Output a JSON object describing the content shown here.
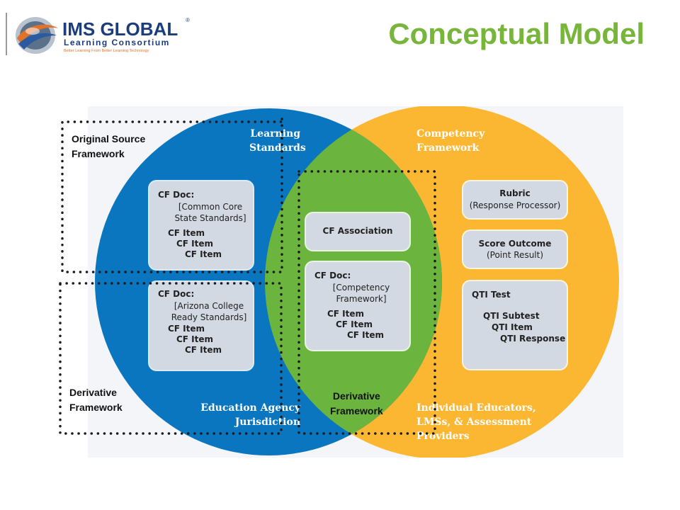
{
  "header": {
    "logo_main": "IMS GLOBAL",
    "logo_sub": "Learning Consortium",
    "logo_tagline": "Better Learning From Better Learning Technology",
    "registered_mark": "®",
    "title": "Conceptual Model"
  },
  "colors": {
    "title": "#77b53b",
    "blue_circle": "#0b76c0",
    "orange_circle": "#fbb731",
    "overlap": "#6bb43e",
    "box": "#d2d9e3"
  },
  "circles": {
    "left_label": "Learning\nStandards",
    "right_label": "Competency\nFramework",
    "left_bottom_label": "Education Agency\nJurisdiction",
    "right_bottom_label": "Individual Educators,\nLMSs, & Assessment\nProviders"
  },
  "left_boxes": [
    {
      "title": "CF Doc:",
      "subtitle": "[Common Core\nState Standards]",
      "items": [
        "CF Item",
        "CF Item",
        "CF Item"
      ]
    },
    {
      "title": "CF Doc:",
      "subtitle": "[Arizona College\nReady Standards]",
      "items": [
        "CF Item",
        "CF Item",
        "CF Item"
      ]
    }
  ],
  "center_boxes": {
    "association": "CF Association",
    "doc": {
      "title": "CF Doc:",
      "subtitle": "[Competency\nFramework]",
      "items": [
        "CF Item",
        "CF Item",
        "CF Item"
      ]
    }
  },
  "right_boxes": {
    "rubric": {
      "title": "Rubric",
      "subtitle": "(Response Processor)"
    },
    "score": {
      "title": "Score Outcome",
      "subtitle": "(Point Result)"
    },
    "qti": {
      "title": "QTI Test",
      "items": [
        "QTI Subtest",
        "QTI Item",
        "QTI Response"
      ]
    }
  },
  "overlays": {
    "original_source": "Original Source\nFramework",
    "derivative_left": "Derivative\nFramework",
    "derivative_center": "Derivative\nFramework"
  }
}
